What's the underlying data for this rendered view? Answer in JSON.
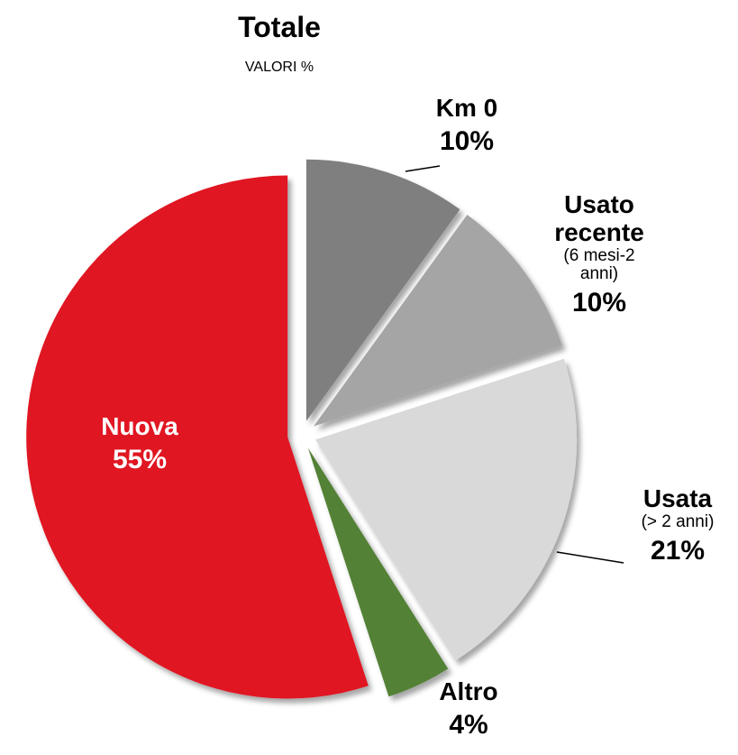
{
  "chart_data": {
    "type": "pie",
    "title": "Totale",
    "subtitle": "VALORI %",
    "categories": [
      "Km 0",
      "Usato recente",
      "Usata",
      "Altro",
      "Nuova"
    ],
    "category_notes": [
      null,
      "(6 mesi-2 anni)",
      "(> 2 anni)",
      null,
      null
    ],
    "values": [
      10,
      10,
      21,
      4,
      55
    ],
    "value_labels": [
      "10%",
      "10%",
      "21%",
      "4%",
      "55%"
    ],
    "colors": [
      "#7f7f7f",
      "#a5a5a5",
      "#d9d9d9",
      "#538135",
      "#e01722"
    ]
  }
}
